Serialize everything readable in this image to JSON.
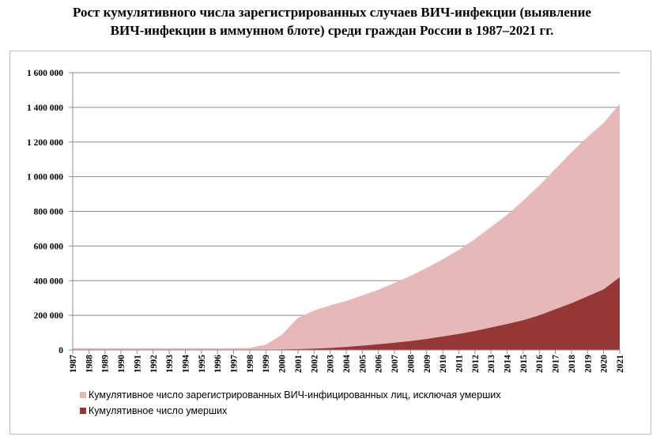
{
  "chart_data": {
    "type": "area",
    "title_line1": "Рост кумулятивного числа зарегистрированных случаев ВИЧ-инфекции (выявление",
    "title_line2": "ВИЧ-инфекции в иммунном блоте) среди  граждан России в 1987–2021 гг.",
    "x": [
      "1987",
      "1988",
      "1989",
      "1990",
      "1991",
      "1992",
      "1993",
      "1994",
      "1995",
      "1996",
      "1997",
      "1998",
      "1999",
      "2000",
      "2001",
      "2002",
      "2003",
      "2004",
      "2005",
      "2006",
      "2007",
      "2008",
      "2009",
      "2010",
      "2011",
      "2012",
      "2013",
      "2014",
      "2015",
      "2016",
      "2017",
      "2018",
      "2019",
      "2020",
      "2021"
    ],
    "ylim": [
      0,
      1600000
    ],
    "y_ticks": [
      0,
      200000,
      400000,
      600000,
      800000,
      1000000,
      1200000,
      1400000,
      1600000
    ],
    "y_tick_labels": [
      "0",
      "200 000",
      "400 000",
      "600 000",
      "800 000",
      "1 000 000",
      "1 200 000",
      "1 400 000",
      "1 600 000"
    ],
    "grid": true,
    "legend_position": "bottom",
    "stacked": true,
    "series": [
      {
        "name": "Кумулятивное число зарегистрированных ВИЧ-инфицированных лиц, исключая умерших",
        "color": "#e6b9b8",
        "values": [
          10000,
          10000,
          10000,
          10000,
          10000,
          10000,
          10000,
          10000,
          10000,
          10000,
          10000,
          12000,
          30000,
          85000,
          180000,
          220000,
          245000,
          265000,
          290000,
          315000,
          345000,
          375000,
          410000,
          445000,
          485000,
          530000,
          580000,
          630000,
          690000,
          750000,
          810000,
          870000,
          920000,
          960000,
          1000000
        ]
      },
      {
        "name": "Кумулятивное число умерших",
        "color": "#953735",
        "values": [
          0,
          0,
          0,
          0,
          0,
          0,
          0,
          0,
          0,
          0,
          0,
          0,
          1000,
          3000,
          5000,
          8000,
          12000,
          18000,
          25000,
          33000,
          42000,
          52000,
          64000,
          78000,
          93000,
          110000,
          130000,
          150000,
          172000,
          200000,
          235000,
          270000,
          310000,
          350000,
          420000
        ]
      }
    ]
  }
}
